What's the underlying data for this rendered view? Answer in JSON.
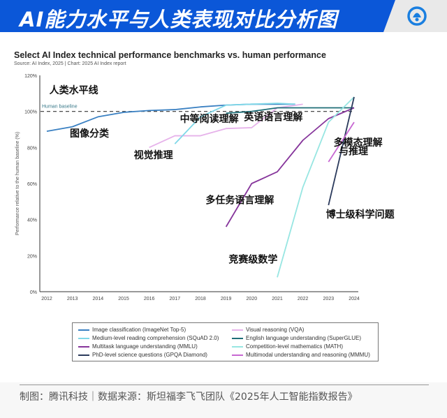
{
  "header": {
    "title": "AI能力水平与人类表现对比分析图",
    "logo_icon": "tencent-news-logo-icon",
    "brand_color": "#0b57d8"
  },
  "chart_data": {
    "type": "line",
    "title": "Select AI Index technical performance benchmarks vs. human performance",
    "subtitle": "Source: AI Index, 2025 | Chart: 2025 AI Index report",
    "xlabel": "",
    "ylabel": "Performance relative to the human baseline (%)",
    "xlim": [
      2012,
      2024
    ],
    "ylim": [
      0,
      120
    ],
    "x_ticks": [
      "2012",
      "2013",
      "2014",
      "2015",
      "2016",
      "2017",
      "2018",
      "2019",
      "2020",
      "2021",
      "2022",
      "2023",
      "2024"
    ],
    "y_ticks": [
      "0%",
      "20%",
      "40%",
      "60%",
      "80%",
      "100%",
      "120%"
    ],
    "y_tick_values": [
      0,
      20,
      40,
      60,
      80,
      100,
      120
    ],
    "grid": false,
    "legend_position": "bottom",
    "baseline": {
      "label": "Human baseline",
      "value": 100,
      "style": "dashed"
    },
    "series": [
      {
        "name": "Image classification (ImageNet Top-5)",
        "color": "#3a80c2",
        "x": [
          2012,
          2013,
          2014,
          2015,
          2016,
          2017,
          2018,
          2019,
          2020,
          2021,
          2021.7
        ],
        "y": [
          89,
          91.5,
          97,
          99.5,
          100.5,
          101,
          102.5,
          103.5,
          104,
          104,
          104
        ]
      },
      {
        "name": "Visual reasoning (VQA)",
        "color": "#e6b2ea",
        "x": [
          2016,
          2017,
          2018,
          2019,
          2020,
          2021,
          2022
        ],
        "y": [
          80,
          86.5,
          86.5,
          90.5,
          91,
          102,
          104
        ]
      },
      {
        "name": "Medium-level reading comprehension (SQuAD 2.0)",
        "color": "#80d8e8",
        "x": [
          2017,
          2018,
          2019,
          2020,
          2021,
          2021.7
        ],
        "y": [
          82,
          97,
          103.5,
          104,
          104.5,
          104
        ]
      },
      {
        "name": "English language understanding (SuperGLUE)",
        "color": "#1e6e77",
        "x": [
          2019,
          2020,
          2021,
          2022,
          2023,
          2024
        ],
        "y": [
          99,
          100,
          102,
          102,
          102,
          102
        ]
      },
      {
        "name": "Multitask language understanding (MMLU)",
        "color": "#86359b",
        "x": [
          2019,
          2020,
          2021,
          2022,
          2023,
          2024
        ],
        "y": [
          36,
          60,
          66.5,
          84,
          96,
          102
        ]
      },
      {
        "name": "Competition-level mathematics (MATH)",
        "color": "#97e6e2",
        "x": [
          2021,
          2022,
          2023,
          2024
        ],
        "y": [
          8,
          58,
          94,
          108
        ]
      },
      {
        "name": "PhD-level science questions (GPQA Diamond)",
        "color": "#2b3a5c",
        "x": [
          2023,
          2024
        ],
        "y": [
          48,
          108
        ]
      },
      {
        "name": "Multimodal understanding and reasoning (MMMU)",
        "color": "#c767d2",
        "x": [
          2023,
          2024
        ],
        "y": [
          72,
          94
        ]
      }
    ],
    "annotations": [
      {
        "text": "人类水平线",
        "x": 2012.1,
        "y": 110
      },
      {
        "text": "图像分类",
        "x": 2012.9,
        "y": 86
      },
      {
        "text": "中等阅读理解",
        "x": 2017.2,
        "y": 94
      },
      {
        "text": "英语语言理解",
        "x": 2019.7,
        "y": 95
      },
      {
        "text": "视觉推理",
        "x": 2015.4,
        "y": 74
      },
      {
        "text": "多模态理解",
        "x": 2023.2,
        "y": 81
      },
      {
        "text": "与推理",
        "x": 2023.4,
        "y": 76
      },
      {
        "text": "多任务语言理解",
        "x": 2018.2,
        "y": 49
      },
      {
        "text": "博士级科学问题",
        "x": 2022.9,
        "y": 41
      },
      {
        "text": "竞赛级数学",
        "x": 2019.1,
        "y": 16
      }
    ]
  },
  "footer": {
    "text": "制图：腾讯科技｜数据来源：斯坦福李飞飞团队《2025年人工智能指数报告》"
  }
}
